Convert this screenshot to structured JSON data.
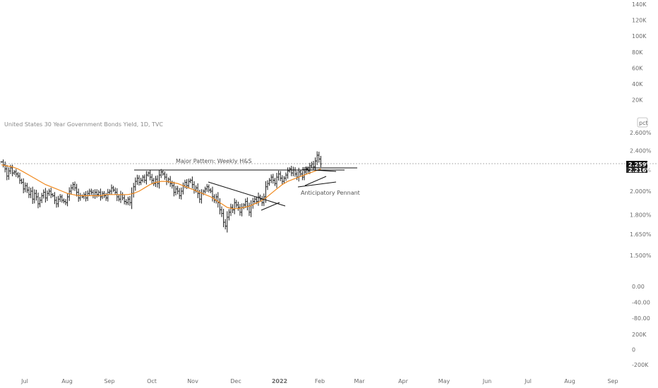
{
  "chart_data": {
    "type": "ohlc",
    "title": "United States 30 Year Government Bonds Yield, 1D, TVC",
    "unit_label": "pct",
    "current_price_label": "2.259%",
    "ma_price_label": "2.216%",
    "colors": {
      "bars": "#1a1a1a",
      "moving_average": "#f0891e",
      "trendlines": "#111111",
      "price_line": "#9a9a9a",
      "badge_current": "#111111",
      "badge_ma": "#2a2a2a",
      "axis_text": "#6b6b6b"
    },
    "x_axis": {
      "labels": [
        "Jul",
        "Aug",
        "Sep",
        "Oct",
        "Nov",
        "Dec",
        "2022",
        "Feb",
        "Mar",
        "Apr",
        "May",
        "Jun",
        "Jul",
        "Aug",
        "Sep"
      ]
    },
    "y_axis_price": {
      "scale": "log",
      "range": [
        1.4,
        2.75
      ],
      "ticks": [
        "2.600%",
        "2.400%",
        "2.200%",
        "2.000%",
        "1.800%",
        "1.650%",
        "1.500%"
      ]
    },
    "y_axis_volume": {
      "ticks": [
        "140K",
        "120K",
        "100K",
        "80K",
        "60K",
        "40K",
        "20K"
      ]
    },
    "y_axis_oscillator": {
      "ticks": [
        "0.00",
        "-40.00",
        "-80.00"
      ]
    },
    "y_axis_other": {
      "ticks": [
        "200K",
        "0",
        "-200K"
      ]
    },
    "series": [
      {
        "name": "",
        "kind": "ohlc_close",
        "values": [
          2.28,
          2.25,
          2.21,
          2.14,
          2.19,
          2.22,
          2.17,
          2.18,
          2.16,
          2.14,
          2.1,
          2.08,
          2.02,
          2.05,
          2.01,
          1.97,
          2.0,
          1.93,
          1.98,
          1.95,
          1.89,
          1.92,
          1.96,
          1.99,
          1.94,
          1.98,
          2.0,
          1.97,
          1.96,
          1.92,
          1.89,
          1.93,
          1.95,
          1.92,
          1.91,
          1.9,
          1.95,
          2.0,
          2.03,
          2.06,
          2.03,
          1.99,
          1.94,
          1.96,
          1.95,
          1.97,
          1.94,
          1.98,
          2.0,
          1.99,
          1.96,
          1.99,
          1.97,
          1.99,
          1.95,
          1.98,
          1.96,
          1.94,
          1.99,
          2.0,
          2.03,
          2.01,
          1.99,
          1.95,
          1.93,
          1.97,
          1.94,
          1.91,
          1.9,
          1.93,
          1.9,
          1.98,
          2.04,
          2.09,
          2.12,
          2.08,
          2.1,
          2.13,
          2.1,
          2.15,
          2.17,
          2.13,
          2.1,
          2.07,
          2.11,
          2.07,
          2.15,
          2.18,
          2.16,
          2.13,
          2.09,
          2.11,
          2.07,
          2.05,
          1.99,
          2.02,
          2.0,
          1.96,
          2.0,
          2.05,
          2.08,
          2.05,
          2.09,
          2.1,
          2.06,
          2.01,
          2.03,
          1.98,
          1.93,
          1.98,
          2.0,
          2.02,
          2.04,
          2.01,
          2.0,
          1.95,
          1.92,
          1.95,
          1.9,
          1.84,
          1.81,
          1.74,
          1.71,
          1.78,
          1.82,
          1.86,
          1.84,
          1.9,
          1.88,
          1.86,
          1.82,
          1.86,
          1.88,
          1.91,
          1.87,
          1.82,
          1.88,
          1.91,
          1.93,
          1.91,
          1.95,
          1.93,
          1.9,
          1.95,
          2.04,
          2.07,
          2.1,
          2.13,
          2.1,
          2.07,
          2.13,
          2.16,
          2.12,
          2.09,
          2.12,
          2.15,
          2.19,
          2.21,
          2.17,
          2.2,
          2.16,
          2.13,
          2.18,
          2.16,
          2.13,
          2.18,
          2.21,
          2.19,
          2.24,
          2.26,
          2.23,
          2.29,
          2.35,
          2.31,
          2.26
        ]
      },
      {
        "name": "",
        "kind": "moving_average",
        "values": [
          2.25,
          2.24,
          2.23,
          2.21,
          2.18,
          2.15,
          2.12,
          2.09,
          2.06,
          2.04,
          2.02,
          2.0,
          1.98,
          1.97,
          1.96,
          1.96,
          1.96,
          1.96,
          1.96,
          1.97,
          1.97,
          1.97,
          1.97,
          1.97,
          1.98,
          2.0,
          2.03,
          2.06,
          2.08,
          2.09,
          2.09,
          2.08,
          2.07,
          2.05,
          2.03,
          2.01,
          1.99,
          1.97,
          1.95,
          1.92,
          1.89,
          1.86,
          1.85,
          1.85,
          1.86,
          1.87,
          1.89,
          1.91,
          1.94,
          1.98,
          2.02,
          2.06,
          2.09,
          2.11,
          2.13,
          2.15,
          2.17,
          2.19,
          2.21
        ]
      }
    ],
    "annotations": [
      "Major Pattern: Weekly H&S",
      "Anticipatory Pennant"
    ]
  }
}
